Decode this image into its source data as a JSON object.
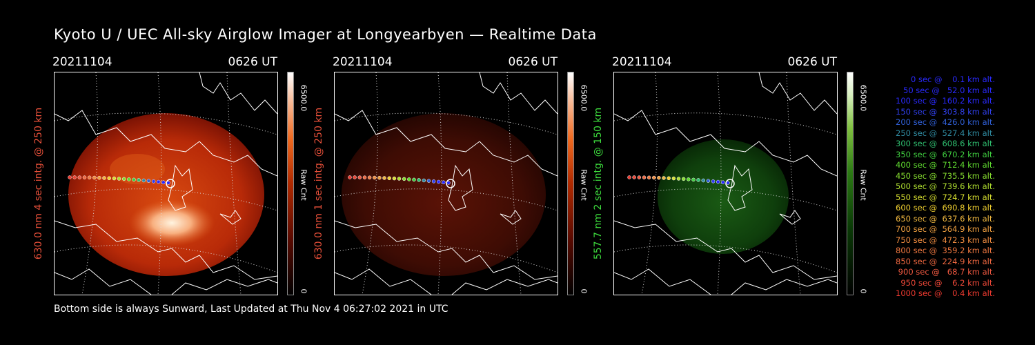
{
  "title": "Kyoto U / UEC All-sky Airglow Imager at Longyearbyen — Realtime Data",
  "footer": "Bottom side is always Sunward, Last Updated at Thu Nov  4 06:27:02 2021 in UTC",
  "panels": [
    {
      "date": "20211104",
      "time": "0626 UT",
      "ylabel": "630.0 nm 4 sec intg. @ 250 km",
      "ylabel_color": "#e8503a",
      "cbar_max": "6500.0",
      "cbar_min": "0",
      "cbar_unit": "Raw Cnt",
      "palette": "red",
      "brightness": "high"
    },
    {
      "date": "20211104",
      "time": "0626 UT",
      "ylabel": "630.0 nm 1 sec intg. @ 250 km",
      "ylabel_color": "#e8503a",
      "cbar_max": "6500.0",
      "cbar_min": "0",
      "cbar_unit": "Raw Cnt",
      "palette": "red",
      "brightness": "low"
    },
    {
      "date": "20211104",
      "time": "0626 UT",
      "ylabel": "557.7 nm 2 sec intg. @ 150 km",
      "ylabel_color": "#3ddc3d",
      "cbar_max": "6500.0",
      "cbar_min": "0",
      "cbar_unit": "Raw Cnt",
      "palette": "green",
      "brightness": "low"
    }
  ],
  "legend": [
    {
      "text": "   0 sec @    0.1 km alt.",
      "color": "#2a2aff"
    },
    {
      "text": "  50 sec @   52.0 km alt.",
      "color": "#2a2aff"
    },
    {
      "text": " 100 sec @  160.2 km alt.",
      "color": "#2a2aff"
    },
    {
      "text": " 150 sec @  303.8 km alt.",
      "color": "#3040ee"
    },
    {
      "text": " 200 sec @  426.0 km alt.",
      "color": "#3060d8"
    },
    {
      "text": " 250 sec @  527.4 km alt.",
      "color": "#2f8aa0"
    },
    {
      "text": " 300 sec @  608.6 km alt.",
      "color": "#2fc070"
    },
    {
      "text": " 350 sec @  670.2 km alt.",
      "color": "#40d040"
    },
    {
      "text": " 400 sec @  712.4 km alt.",
      "color": "#60dc30"
    },
    {
      "text": " 450 sec @  735.5 km alt.",
      "color": "#88e030"
    },
    {
      "text": " 500 sec @  739.6 km alt.",
      "color": "#b0e030"
    },
    {
      "text": " 550 sec @  724.7 km alt.",
      "color": "#d8e030"
    },
    {
      "text": " 600 sec @  690.8 km alt.",
      "color": "#f0d030"
    },
    {
      "text": " 650 sec @  637.6 km alt.",
      "color": "#f0b840"
    },
    {
      "text": " 700 sec @  564.9 km alt.",
      "color": "#f0a040"
    },
    {
      "text": " 750 sec @  472.3 km alt.",
      "color": "#f08c40"
    },
    {
      "text": " 800 sec @  359.2 km alt.",
      "color": "#f07840"
    },
    {
      "text": " 850 sec @  224.9 km alt.",
      "color": "#f06840"
    },
    {
      "text": " 900 sec @   68.7 km alt.",
      "color": "#f05840"
    },
    {
      "text": " 950 sec @    6.2 km alt.",
      "color": "#ee4838"
    },
    {
      "text": "1000 sec @    0.4 km alt.",
      "color": "#ee3a30"
    }
  ]
}
